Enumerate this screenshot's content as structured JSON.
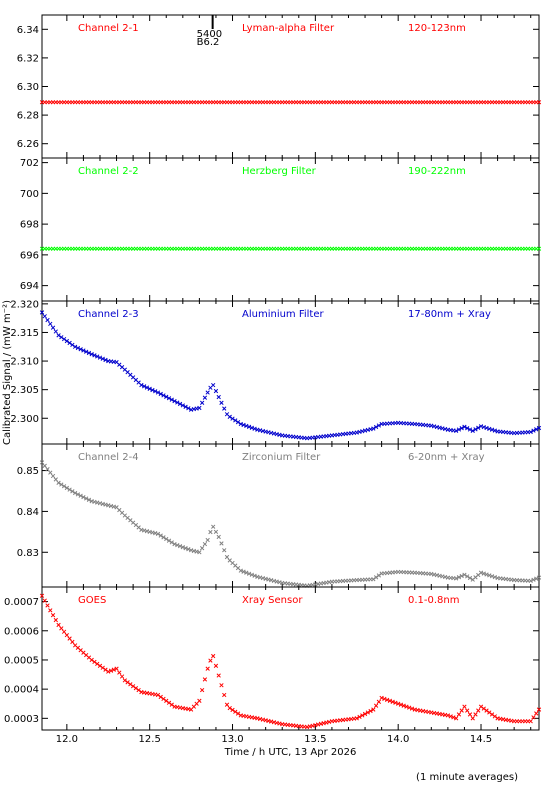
{
  "chart_data": {
    "type": "scatter",
    "xlabel": "Time / h UTC, 13 Apr 2026",
    "ylabel": "Calibrated Signal / (mW m⁻²)",
    "xlim": [
      11.85,
      14.85
    ],
    "xticks": [
      "12.0",
      "12.5",
      "13.0",
      "13.5",
      "14.0",
      "14.5"
    ],
    "xtick_values": [
      12.0,
      12.5,
      13.0,
      13.5,
      14.0,
      14.5
    ],
    "footnote": "(1 minute averages)",
    "marker_annotation": {
      "x": 12.88,
      "label_top": "5400",
      "label_bottom": "B6.2"
    },
    "panels": [
      {
        "channel": "Channel 2-1",
        "filter": "Lyman-alpha Filter",
        "band": "120-123nm",
        "color": "#ff0000",
        "ylim": [
          6.25,
          6.35
        ],
        "yticks": [
          "6.26",
          "6.28",
          "6.30",
          "6.32",
          "6.34"
        ],
        "ytick_values": [
          6.26,
          6.28,
          6.3,
          6.32,
          6.34
        ],
        "series": [
          {
            "x": [
              11.85,
              14.85
            ],
            "y": [
              6.289,
              6.289
            ]
          }
        ]
      },
      {
        "channel": "Channel 2-2",
        "filter": "Herzberg Filter",
        "band": "190-222nm",
        "color": "#00ff00",
        "ylim": [
          693,
          702.3
        ],
        "yticks": [
          "694",
          "696",
          "698",
          "700",
          "702"
        ],
        "ytick_values": [
          694,
          696,
          698,
          700,
          702
        ],
        "series": [
          {
            "x": [
              11.85,
              14.85
            ],
            "y": [
              696.4,
              696.4
            ]
          }
        ]
      },
      {
        "channel": "Channel 2-3",
        "filter": "Aluminium Filter",
        "band": "17-80nm + Xray",
        "color": "#0000cc",
        "ylim": [
          2.2955,
          2.3205
        ],
        "yticks": [
          "2.300",
          "2.305",
          "2.310",
          "2.315",
          "2.320"
        ],
        "ytick_values": [
          2.3,
          2.305,
          2.31,
          2.315,
          2.32
        ],
        "series": [
          {
            "x": [
              11.85,
              11.95,
              12.05,
              12.15,
              12.25,
              12.3,
              12.35,
              12.45,
              12.55,
              12.65,
              12.75,
              12.8,
              12.85,
              12.88,
              12.92,
              12.97,
              13.05,
              13.15,
              13.3,
              13.45,
              13.6,
              13.75,
              13.85,
              13.9,
              14.0,
              14.1,
              14.2,
              14.3,
              14.35,
              14.4,
              14.45,
              14.5,
              14.6,
              14.7,
              14.8,
              14.85
            ],
            "y": [
              2.3185,
              2.3145,
              2.3125,
              2.3112,
              2.31,
              2.3098,
              2.3085,
              2.3058,
              2.3045,
              2.303,
              2.3015,
              2.3018,
              2.3045,
              2.306,
              2.3035,
              2.3005,
              2.299,
              2.298,
              2.297,
              2.2965,
              2.297,
              2.2975,
              2.2982,
              2.299,
              2.2992,
              2.299,
              2.2987,
              2.298,
              2.2978,
              2.2985,
              2.2978,
              2.2986,
              2.2977,
              2.2974,
              2.2976,
              2.2983
            ]
          }
        ]
      },
      {
        "channel": "Channel 2-4",
        "filter": "Zirconium Filter",
        "band": "6-20nm + Xray",
        "color": "#808080",
        "ylim": [
          0.8215,
          0.8565
        ],
        "yticks": [
          "0.83",
          "0.84",
          "0.85"
        ],
        "ytick_values": [
          0.83,
          0.84,
          0.85
        ],
        "series": [
          {
            "x": [
              11.85,
              11.95,
              12.05,
              12.15,
              12.25,
              12.3,
              12.35,
              12.45,
              12.55,
              12.65,
              12.75,
              12.8,
              12.85,
              12.88,
              12.92,
              12.97,
              13.05,
              13.15,
              13.3,
              13.45,
              13.6,
              13.75,
              13.85,
              13.9,
              14.0,
              14.1,
              14.2,
              14.3,
              14.35,
              14.4,
              14.45,
              14.5,
              14.6,
              14.7,
              14.8,
              14.85
            ],
            "y": [
              0.852,
              0.847,
              0.8445,
              0.8425,
              0.8415,
              0.841,
              0.839,
              0.8355,
              0.8345,
              0.832,
              0.8305,
              0.83,
              0.833,
              0.8365,
              0.8335,
              0.8285,
              0.8255,
              0.824,
              0.8225,
              0.8218,
              0.8228,
              0.8232,
              0.8234,
              0.8248,
              0.8252,
              0.825,
              0.8247,
              0.8238,
              0.8236,
              0.8245,
              0.8233,
              0.825,
              0.8237,
              0.8232,
              0.823,
              0.8238
            ]
          }
        ]
      },
      {
        "channel": "GOES",
        "filter": "Xray Sensor",
        "band": "0.1-0.8nm",
        "color": "#ff0000",
        "ylim": [
          0.00026,
          0.00075
        ],
        "yticks": [
          "0.0003",
          "0.0004",
          "0.0005",
          "0.0006",
          "0.0007"
        ],
        "ytick_values": [
          0.0003,
          0.0004,
          0.0005,
          0.0006,
          0.0007
        ],
        "series": [
          {
            "x": [
              11.85,
              11.95,
              12.05,
              12.15,
              12.25,
              12.3,
              12.35,
              12.45,
              12.55,
              12.65,
              12.75,
              12.8,
              12.85,
              12.88,
              12.92,
              12.97,
              13.05,
              13.15,
              13.3,
              13.45,
              13.6,
              13.75,
              13.85,
              13.9,
              14.0,
              14.1,
              14.2,
              14.3,
              14.35,
              14.4,
              14.45,
              14.5,
              14.6,
              14.7,
              14.8,
              14.85
            ],
            "y": [
              0.00072,
              0.00062,
              0.00055,
              0.0005,
              0.00046,
              0.00047,
              0.00043,
              0.00039,
              0.00038,
              0.00034,
              0.00033,
              0.00036,
              0.00047,
              0.00052,
              0.00044,
              0.00034,
              0.00031,
              0.0003,
              0.00028,
              0.00027,
              0.00029,
              0.0003,
              0.00033,
              0.00037,
              0.00035,
              0.00033,
              0.00032,
              0.00031,
              0.0003,
              0.00034,
              0.0003,
              0.00034,
              0.0003,
              0.00029,
              0.00029,
              0.00033
            ]
          }
        ]
      }
    ]
  }
}
